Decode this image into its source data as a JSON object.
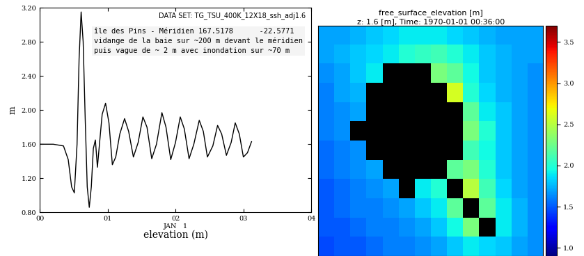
{
  "chart_data": [
    {
      "type": "line",
      "title": "DATA SET: TG_TSU_400K_12X18_ssh_adj1.6",
      "annotations": [
        "île des Pins - Méridien 167.5178      -22.5771",
        "vidange de la baie sur ~200 m devant le méridien",
        "puis vague de ~ 2 m avec inondation sur ~70 m"
      ],
      "xlabel": "elevation (m)",
      "ylabel": "m",
      "x": [
        0,
        0.2,
        0.35,
        0.42,
        0.47,
        0.51,
        0.55,
        0.58,
        0.61,
        0.64,
        0.67,
        0.7,
        0.73,
        0.76,
        0.79,
        0.82,
        0.85,
        0.88,
        0.92,
        0.97,
        1.02,
        1.07,
        1.12,
        1.18,
        1.25,
        1.31,
        1.38,
        1.45,
        1.52,
        1.58,
        1.65,
        1.72,
        1.8,
        1.86,
        1.93,
        2.0,
        2.07,
        2.13,
        2.2,
        2.27,
        2.35,
        2.41,
        2.47,
        2.55,
        2.62,
        2.68,
        2.75,
        2.82,
        2.88,
        2.94,
        3.0,
        3.06,
        3.12
      ],
      "values": [
        1.6,
        1.6,
        1.58,
        1.42,
        1.1,
        1.03,
        1.6,
        2.6,
        3.15,
        2.8,
        1.9,
        1.1,
        0.86,
        1.1,
        1.55,
        1.65,
        1.33,
        1.6,
        1.95,
        2.08,
        1.85,
        1.36,
        1.45,
        1.72,
        1.9,
        1.75,
        1.45,
        1.62,
        1.92,
        1.8,
        1.43,
        1.6,
        1.97,
        1.8,
        1.42,
        1.62,
        1.92,
        1.78,
        1.43,
        1.6,
        1.88,
        1.75,
        1.45,
        1.58,
        1.82,
        1.72,
        1.47,
        1.62,
        1.85,
        1.72,
        1.45,
        1.5,
        1.63
      ],
      "color": "#000000",
      "xlim": [
        0,
        4
      ],
      "xticks": [
        {
          "value": 0,
          "label": "00"
        },
        {
          "value": 1,
          "label": "01"
        },
        {
          "value": 2,
          "label": "02\nJAN   1"
        },
        {
          "value": 3,
          "label": "03"
        },
        {
          "value": 4,
          "label": "04"
        }
      ],
      "ylim": [
        0.8,
        3.2
      ],
      "yticks": [
        {
          "value": 0.8,
          "label": "0.80"
        },
        {
          "value": 1.2,
          "label": "1.20"
        },
        {
          "value": 1.6,
          "label": "1.60"
        },
        {
          "value": 2.0,
          "label": "2.00"
        },
        {
          "value": 2.4,
          "label": "2.40"
        },
        {
          "value": 2.8,
          "label": "2.80"
        },
        {
          "value": 3.2,
          "label": "3.20"
        }
      ]
    },
    {
      "type": "heatmap",
      "title": "free_surface_elevation [m]",
      "subtitle": "z: 1.6 [m], Time: 1970-01-01 00:36:00",
      "tick_labels": false,
      "cells": [
        [
          1.7,
          1.7,
          1.75,
          1.8,
          1.85,
          1.9,
          1.9,
          1.9,
          1.85,
          1.8,
          1.75,
          1.7,
          1.7,
          1.7
        ],
        [
          1.7,
          1.75,
          1.8,
          1.85,
          1.9,
          2.0,
          2.05,
          2.1,
          2.0,
          1.9,
          1.8,
          1.75,
          1.7,
          1.7
        ],
        [
          1.65,
          1.7,
          1.8,
          1.9,
          null,
          null,
          null,
          2.3,
          2.2,
          1.95,
          1.8,
          1.75,
          1.7,
          1.65
        ],
        [
          1.6,
          1.7,
          1.75,
          null,
          null,
          null,
          null,
          null,
          2.6,
          2.0,
          1.85,
          1.75,
          1.7,
          1.65
        ],
        [
          1.6,
          1.65,
          1.7,
          null,
          null,
          null,
          null,
          null,
          null,
          2.2,
          1.9,
          1.8,
          1.7,
          1.65
        ],
        [
          1.6,
          1.65,
          null,
          null,
          null,
          null,
          null,
          null,
          null,
          2.3,
          2.0,
          1.8,
          1.7,
          1.65
        ],
        [
          1.55,
          1.6,
          1.65,
          null,
          null,
          null,
          null,
          null,
          null,
          2.1,
          1.95,
          1.8,
          1.7,
          1.65
        ],
        [
          1.55,
          1.6,
          1.65,
          1.7,
          null,
          null,
          null,
          null,
          2.2,
          2.3,
          2.0,
          1.8,
          1.7,
          1.65
        ],
        [
          1.5,
          1.55,
          1.6,
          1.65,
          1.7,
          null,
          1.9,
          2.0,
          null,
          2.5,
          2.1,
          1.85,
          1.7,
          1.65
        ],
        [
          1.5,
          1.55,
          1.6,
          1.6,
          1.65,
          1.7,
          1.8,
          1.9,
          2.2,
          null,
          2.2,
          1.9,
          1.75,
          1.65
        ],
        [
          1.5,
          1.5,
          1.55,
          1.6,
          1.6,
          1.65,
          1.7,
          1.8,
          1.95,
          2.3,
          null,
          1.9,
          1.75,
          1.65
        ],
        [
          1.45,
          1.5,
          1.5,
          1.55,
          1.6,
          1.6,
          1.65,
          1.7,
          1.8,
          1.9,
          1.85,
          1.8,
          1.7,
          1.65
        ]
      ],
      "colorbar_range": [
        0.9,
        3.7
      ],
      "colorbar_ticks": [
        1.0,
        1.5,
        2.0,
        2.5,
        3.0,
        3.5
      ]
    }
  ]
}
